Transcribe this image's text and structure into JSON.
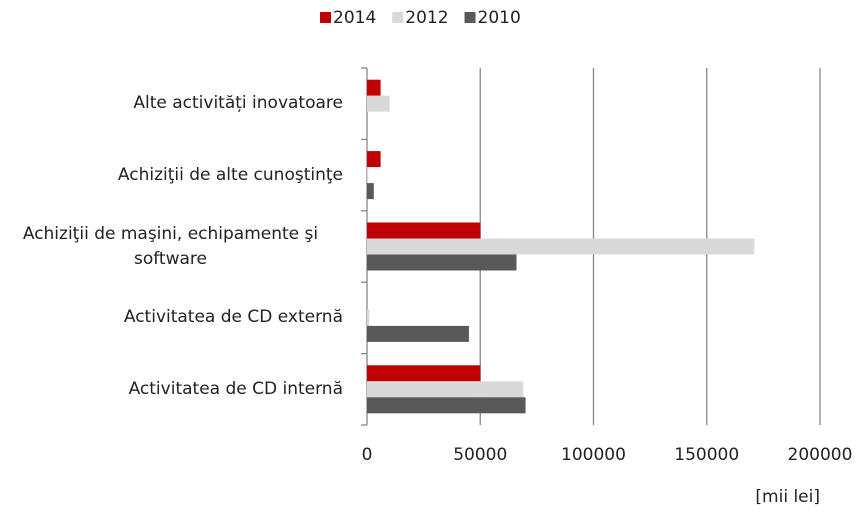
{
  "chart_data": {
    "type": "bar",
    "orientation": "horizontal",
    "categories": [
      "Alte activități inovatoare",
      "Achiziţii de alte cunoştinţe",
      "Achiziţii de maşini, echipamente şi software",
      "Activitatea de CD externă",
      "Activitatea de CD internă"
    ],
    "series": [
      {
        "name": "2014",
        "color": "#c00000",
        "values": [
          6000,
          6000,
          50000,
          0,
          50000
        ]
      },
      {
        "name": "2012",
        "color": "#d9d9d9",
        "values": [
          10000,
          500,
          171000,
          1000,
          69000
        ]
      },
      {
        "name": "2010",
        "color": "#595959",
        "values": [
          0,
          3000,
          66000,
          45000,
          70000
        ]
      }
    ],
    "xlim": [
      0,
      200000
    ],
    "xticks": [
      0,
      50000,
      100000,
      150000,
      200000
    ],
    "x_axis_label": "[mii lei]",
    "grid": true,
    "legend": "top"
  }
}
